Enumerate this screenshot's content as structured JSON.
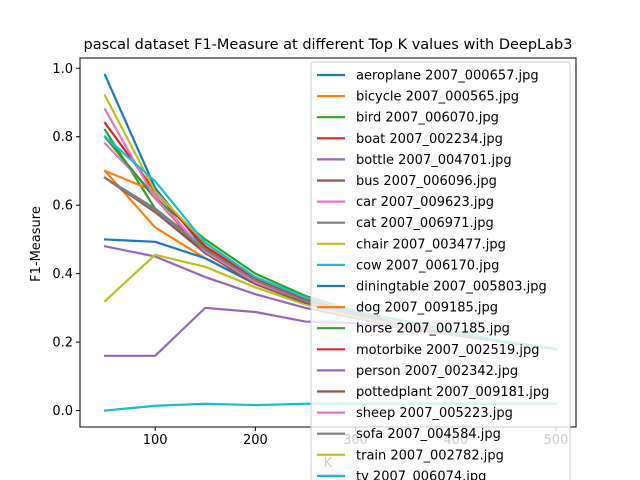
{
  "chart_data": {
    "type": "line",
    "title": "pascal  dataset F1-Measure at different Top K values with DeepLab3",
    "xlabel": "K",
    "ylabel": "F1-Measure",
    "xlim": [
      25,
      520
    ],
    "ylim": [
      -0.048,
      1.03
    ],
    "x_ticks": [
      100,
      200,
      300,
      400,
      500
    ],
    "y_ticks": [
      0.0,
      0.2,
      0.4,
      0.6,
      0.8,
      1.0
    ],
    "x_tick_labels": [
      "100",
      "200",
      "300",
      "400",
      "500"
    ],
    "y_tick_labels": [
      "0.0",
      "0.2",
      "0.4",
      "0.6",
      "0.8",
      "1.0"
    ],
    "grid": false,
    "legend_position": "upper right",
    "x": [
      50,
      100,
      150,
      200,
      250,
      300,
      350,
      400,
      450,
      500
    ],
    "series": [
      {
        "name": "aeroplane 2007_000657.jpg",
        "color": "#1f77b4",
        "values": [
          0.98,
          0.65,
          0.47,
          0.38,
          0.32,
          0.28,
          0.25,
          0.22,
          0.2,
          0.18
        ]
      },
      {
        "name": "bicycle 2007_000565.jpg",
        "color": "#ff7f0e",
        "values": [
          0.7,
          0.535,
          0.445,
          0.37,
          0.315,
          0.28,
          0.25,
          0.225,
          0.2,
          0.18
        ]
      },
      {
        "name": "bird 2007_006070.jpg",
        "color": "#2ca02c",
        "values": [
          0.82,
          0.59,
          0.475,
          0.39,
          0.33,
          0.29,
          0.26,
          0.23,
          0.2,
          0.18
        ]
      },
      {
        "name": "boat 2007_002234.jpg",
        "color": "#d62728",
        "values": [
          0.8,
          0.62,
          0.46,
          0.375,
          0.32,
          0.28,
          0.25,
          0.22,
          0.2,
          0.18
        ]
      },
      {
        "name": "bottle 2007_004701.jpg",
        "color": "#9467bd",
        "values": [
          0.48,
          0.45,
          0.39,
          0.34,
          0.3,
          0.27,
          0.24,
          0.22,
          0.2,
          0.18
        ]
      },
      {
        "name": "bus 2007_006096.jpg",
        "color": "#8c564b",
        "values": [
          0.68,
          0.58,
          0.47,
          0.375,
          0.315,
          0.28,
          0.25,
          0.22,
          0.2,
          0.18
        ]
      },
      {
        "name": "car 2007_009623.jpg",
        "color": "#e377c2",
        "values": [
          0.78,
          0.63,
          0.46,
          0.375,
          0.32,
          0.28,
          0.25,
          0.22,
          0.2,
          0.18
        ]
      },
      {
        "name": "cat 2007_006971.jpg",
        "color": "#7f7f7f",
        "values": [
          0.68,
          0.59,
          0.47,
          0.38,
          0.32,
          0.28,
          0.25,
          0.22,
          0.2,
          0.18
        ]
      },
      {
        "name": "chair 2007_003477.jpg",
        "color": "#bcbd22",
        "values": [
          0.32,
          0.455,
          0.42,
          0.36,
          0.31,
          0.275,
          0.245,
          0.22,
          0.2,
          0.18
        ]
      },
      {
        "name": "cow 2007_006170.jpg",
        "color": "#17becf",
        "values": [
          0.0,
          0.014,
          0.02,
          0.016,
          0.02,
          0.02,
          0.02,
          0.02,
          0.02,
          0.02
        ]
      },
      {
        "name": "diningtable 2007_005803.jpg",
        "color": "#1f77b4",
        "values": [
          0.5,
          0.493,
          0.445,
          0.37,
          0.315,
          0.28,
          0.25,
          0.22,
          0.2,
          0.18
        ]
      },
      {
        "name": "dog 2007_009185.jpg",
        "color": "#ff7f0e",
        "values": [
          0.7,
          0.64,
          0.48,
          0.385,
          0.325,
          0.285,
          0.25,
          0.22,
          0.2,
          0.18
        ]
      },
      {
        "name": "horse 2007_007185.jpg",
        "color": "#2ca02c",
        "values": [
          0.8,
          0.62,
          0.5,
          0.4,
          0.335,
          0.29,
          0.26,
          0.23,
          0.2,
          0.18
        ]
      },
      {
        "name": "motorbike 2007_002519.jpg",
        "color": "#d62728",
        "values": [
          0.84,
          0.64,
          0.48,
          0.385,
          0.325,
          0.285,
          0.25,
          0.22,
          0.2,
          0.18
        ]
      },
      {
        "name": "person 2007_002342.jpg",
        "color": "#9467bd",
        "values": [
          0.16,
          0.16,
          0.3,
          0.288,
          0.26,
          0.255,
          0.24,
          0.22,
          0.2,
          0.18
        ]
      },
      {
        "name": "pottedplant 2007_009181.jpg",
        "color": "#8c564b",
        "values": [
          0.68,
          0.58,
          0.46,
          0.37,
          0.315,
          0.28,
          0.25,
          0.22,
          0.2,
          0.18
        ]
      },
      {
        "name": "sheep 2007_005223.jpg",
        "color": "#e377c2",
        "values": [
          0.88,
          0.62,
          0.465,
          0.375,
          0.32,
          0.28,
          0.25,
          0.22,
          0.2,
          0.18
        ]
      },
      {
        "name": "sofa 2007_004584.jpg",
        "color": "#7f7f7f",
        "values": [
          0.68,
          0.585,
          0.47,
          0.38,
          0.32,
          0.28,
          0.25,
          0.22,
          0.2,
          0.18
        ]
      },
      {
        "name": "train 2007_002782.jpg",
        "color": "#bcbd22",
        "values": [
          0.92,
          0.64,
          0.49,
          0.39,
          0.33,
          0.29,
          0.26,
          0.23,
          0.2,
          0.18
        ]
      },
      {
        "name": "tv 2007_006074.jpg",
        "color": "#17becf",
        "values": [
          0.8,
          0.67,
          0.49,
          0.39,
          0.33,
          0.29,
          0.26,
          0.23,
          0.2,
          0.18
        ]
      }
    ]
  }
}
